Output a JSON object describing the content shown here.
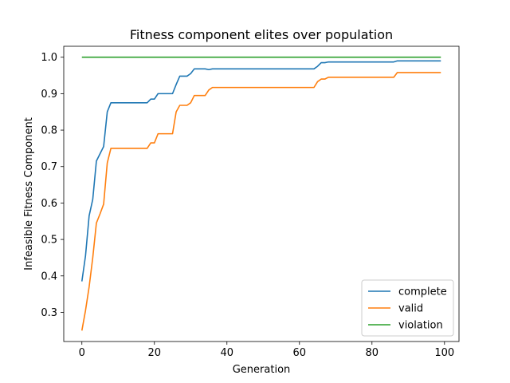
{
  "chart_data": {
    "type": "line",
    "title": "Fitness component elites over population",
    "xlabel": "Generation",
    "ylabel": "Infeasible Fitness Component",
    "xlim": [
      -5,
      104
    ],
    "ylim": [
      0.22,
      1.03
    ],
    "xticks": [
      0,
      20,
      40,
      60,
      80,
      100
    ],
    "yticks": [
      0.3,
      0.4,
      0.5,
      0.6,
      0.7,
      0.8,
      0.9,
      1.0
    ],
    "ytick_labels": [
      "0.3",
      "0.4",
      "0.5",
      "0.6",
      "0.7",
      "0.8",
      "0.9",
      "1.0"
    ],
    "grid": false,
    "legend_position": "lower-right",
    "series": [
      {
        "name": "complete",
        "color": "#1f77b4",
        "points": [
          [
            0,
            0.385
          ],
          [
            1,
            0.455
          ],
          [
            2,
            0.565
          ],
          [
            3,
            0.61
          ],
          [
            4,
            0.715
          ],
          [
            5,
            0.735
          ],
          [
            6,
            0.755
          ],
          [
            7,
            0.85
          ],
          [
            8,
            0.875
          ],
          [
            17,
            0.875
          ],
          [
            18,
            0.875
          ],
          [
            19,
            0.885
          ],
          [
            20,
            0.885
          ],
          [
            21,
            0.9
          ],
          [
            25,
            0.9
          ],
          [
            26,
            0.925
          ],
          [
            27,
            0.948
          ],
          [
            29,
            0.948
          ],
          [
            30,
            0.955
          ],
          [
            31,
            0.968
          ],
          [
            34,
            0.968
          ],
          [
            35,
            0.966
          ],
          [
            36,
            0.968
          ],
          [
            64,
            0.968
          ],
          [
            65,
            0.975
          ],
          [
            66,
            0.985
          ],
          [
            67,
            0.985
          ],
          [
            68,
            0.987
          ],
          [
            86,
            0.987
          ],
          [
            87,
            0.99
          ],
          [
            99,
            0.99
          ]
        ]
      },
      {
        "name": "valid",
        "color": "#ff7f0e",
        "points": [
          [
            0,
            0.25
          ],
          [
            1,
            0.305
          ],
          [
            2,
            0.37
          ],
          [
            3,
            0.45
          ],
          [
            4,
            0.545
          ],
          [
            5,
            0.57
          ],
          [
            6,
            0.597
          ],
          [
            7,
            0.71
          ],
          [
            8,
            0.75
          ],
          [
            18,
            0.75
          ],
          [
            19,
            0.765
          ],
          [
            20,
            0.765
          ],
          [
            21,
            0.79
          ],
          [
            25,
            0.79
          ],
          [
            26,
            0.85
          ],
          [
            27,
            0.868
          ],
          [
            29,
            0.868
          ],
          [
            30,
            0.875
          ],
          [
            31,
            0.895
          ],
          [
            34,
            0.895
          ],
          [
            35,
            0.91
          ],
          [
            36,
            0.917
          ],
          [
            64,
            0.917
          ],
          [
            65,
            0.933
          ],
          [
            66,
            0.94
          ],
          [
            67,
            0.94
          ],
          [
            68,
            0.945
          ],
          [
            86,
            0.945
          ],
          [
            87,
            0.958
          ],
          [
            99,
            0.958
          ]
        ]
      },
      {
        "name": "violation",
        "color": "#2ca02c",
        "points": [
          [
            0,
            1.0
          ],
          [
            99,
            1.0
          ]
        ]
      }
    ]
  }
}
